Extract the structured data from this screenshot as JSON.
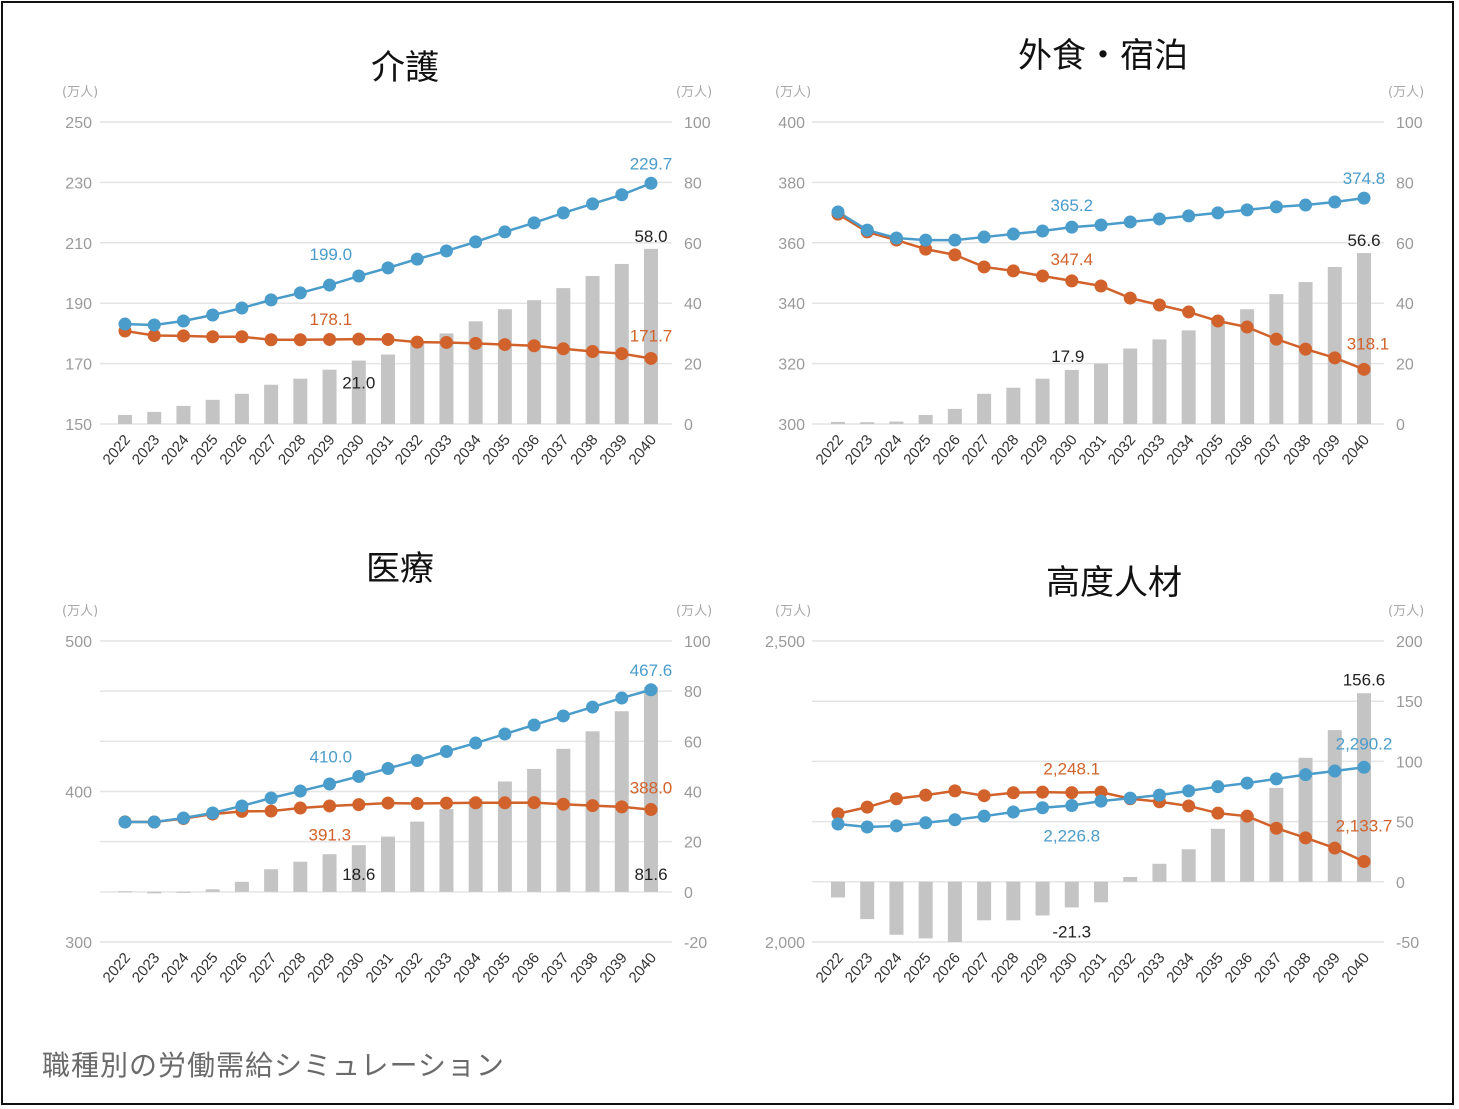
{
  "caption": "職種別の労働需給シミュレーション",
  "colors": {
    "demand": "#4a9ccb",
    "supply": "#d2622b",
    "gap": "#c4c4c4",
    "grid": "#e4e4e4"
  },
  "chart_data": [
    {
      "type": "bar+line",
      "title": "介護",
      "left_unit": "(万人)",
      "right_unit": "(万人)",
      "categories": [
        "2022",
        "2023",
        "2024",
        "2025",
        "2026",
        "2027",
        "2028",
        "2029",
        "2030",
        "2031",
        "2032",
        "2033",
        "2034",
        "2035",
        "2036",
        "2037",
        "2038",
        "2039",
        "2040"
      ],
      "left_ylim": [
        150,
        250
      ],
      "left_ticks": [
        "150",
        "170",
        "190",
        "210",
        "230",
        "250"
      ],
      "left_tick_values": [
        150,
        170,
        190,
        210,
        230,
        250
      ],
      "right_ylim": [
        0,
        100
      ],
      "right_ticks": [
        "0",
        "20",
        "40",
        "60",
        "80",
        "100"
      ],
      "right_tick_values": [
        0,
        20,
        40,
        60,
        80,
        100
      ],
      "series": [
        {
          "name": "demand",
          "axis": "left",
          "kind": "line",
          "values": [
            183.1,
            182.8,
            184.1,
            186.1,
            188.4,
            191.1,
            193.4,
            196.0,
            199.0,
            201.7,
            204.6,
            207.3,
            210.3,
            213.6,
            216.6,
            219.9,
            222.9,
            225.9,
            229.7
          ]
        },
        {
          "name": "supply",
          "axis": "left",
          "kind": "line",
          "values": [
            180.8,
            179.3,
            179.2,
            178.9,
            178.9,
            177.9,
            177.9,
            178.0,
            178.1,
            178.0,
            177.1,
            177.0,
            176.7,
            176.3,
            175.9,
            174.9,
            174.0,
            173.3,
            171.7
          ]
        },
        {
          "name": "gap",
          "axis": "right",
          "kind": "bar",
          "values": [
            3,
            4,
            6,
            8,
            10,
            13,
            15,
            18,
            21.0,
            23,
            27,
            30,
            34,
            38,
            41,
            45,
            49,
            53,
            58.0
          ]
        }
      ],
      "annotations": [
        {
          "series": "demand",
          "category": "2030",
          "text": "199.0"
        },
        {
          "series": "demand",
          "category": "2040",
          "text": "229.7"
        },
        {
          "series": "supply",
          "category": "2030",
          "text": "178.1"
        },
        {
          "series": "supply",
          "category": "2040",
          "text": "171.7"
        },
        {
          "series": "gap",
          "category": "2030",
          "text": "21.0"
        },
        {
          "series": "gap",
          "category": "2040",
          "text": "58.0"
        }
      ]
    },
    {
      "type": "bar+line",
      "title": "外食・宿泊",
      "left_unit": "(万人)",
      "right_unit": "(万人)",
      "categories": [
        "2022",
        "2023",
        "2024",
        "2025",
        "2026",
        "2027",
        "2028",
        "2029",
        "2030",
        "2031",
        "2032",
        "2033",
        "2034",
        "2035",
        "2036",
        "2037",
        "2038",
        "2039",
        "2040"
      ],
      "left_ylim": [
        300,
        400
      ],
      "left_ticks": [
        "300",
        "320",
        "340",
        "360",
        "380",
        "400"
      ],
      "left_tick_values": [
        300,
        320,
        340,
        360,
        380,
        400
      ],
      "right_ylim": [
        0,
        100
      ],
      "right_ticks": [
        "0",
        "20",
        "40",
        "60",
        "80",
        "100"
      ],
      "right_tick_values": [
        0,
        20,
        40,
        60,
        80,
        100
      ],
      "series": [
        {
          "name": "demand",
          "axis": "left",
          "kind": "line",
          "values": [
            370.2,
            364.2,
            361.6,
            360.9,
            360.9,
            361.9,
            362.9,
            363.9,
            365.2,
            365.9,
            366.9,
            367.9,
            368.9,
            369.9,
            370.9,
            371.9,
            372.5,
            373.5,
            374.8
          ]
        },
        {
          "name": "supply",
          "axis": "left",
          "kind": "line",
          "values": [
            369.5,
            363.6,
            360.9,
            357.9,
            356.0,
            352.0,
            350.7,
            349.0,
            347.4,
            345.7,
            341.7,
            339.4,
            337.1,
            334.1,
            332.1,
            328.1,
            324.8,
            321.9,
            318.1
          ]
        },
        {
          "name": "gap",
          "axis": "right",
          "kind": "bar",
          "values": [
            0.7,
            0.6,
            0.8,
            3,
            5,
            10,
            12,
            15,
            17.9,
            20,
            25,
            28,
            31,
            35,
            38,
            43,
            47,
            52,
            56.6
          ]
        }
      ],
      "annotations": [
        {
          "series": "demand",
          "category": "2030",
          "text": "365.2"
        },
        {
          "series": "demand",
          "category": "2040",
          "text": "374.8"
        },
        {
          "series": "supply",
          "category": "2030",
          "text": "347.4"
        },
        {
          "series": "supply",
          "category": "2040",
          "text": "318.1"
        },
        {
          "series": "gap",
          "category": "2030",
          "text": "17.9"
        },
        {
          "series": "gap",
          "category": "2040",
          "text": "56.6"
        }
      ]
    },
    {
      "type": "bar+line",
      "title": "医療",
      "left_unit": "(万人)",
      "right_unit": "(万人)",
      "categories": [
        "2022",
        "2023",
        "2024",
        "2025",
        "2026",
        "2027",
        "2028",
        "2029",
        "2030",
        "2031",
        "2032",
        "2033",
        "2034",
        "2035",
        "2036",
        "2037",
        "2038",
        "2039",
        "2040"
      ],
      "left_ylim": [
        300,
        500
      ],
      "left_ticks": [
        "300",
        "400",
        "500"
      ],
      "left_tick_values": [
        300,
        400,
        500
      ],
      "right_ylim": [
        -20,
        100
      ],
      "right_ticks": [
        "-20",
        "0",
        "20",
        "40",
        "60",
        "80",
        "100"
      ],
      "right_tick_values": [
        -20,
        0,
        20,
        40,
        60,
        80,
        100
      ],
      "series": [
        {
          "name": "demand",
          "axis": "left",
          "kind": "line",
          "values": [
            379.7,
            379.7,
            382.4,
            385.7,
            390.4,
            395.7,
            400.3,
            405.0,
            410.0,
            415.3,
            420.6,
            426.6,
            432.2,
            438.2,
            444.2,
            450.2,
            456.1,
            462.1,
            467.6
          ]
        },
        {
          "name": "supply",
          "axis": "left",
          "kind": "line",
          "values": [
            379.8,
            379.7,
            382.0,
            385.0,
            386.8,
            387.0,
            389.0,
            390.4,
            391.3,
            392.3,
            392.0,
            392.3,
            392.5,
            392.5,
            392.6,
            391.5,
            390.6,
            389.8,
            388.0
          ]
        },
        {
          "name": "gap",
          "axis": "right",
          "kind": "bar",
          "values": [
            0.2,
            -0.6,
            -0.4,
            1,
            4,
            9,
            12,
            15,
            18.6,
            22,
            28,
            33,
            37,
            44,
            49,
            57,
            64,
            72,
            81.6
          ]
        }
      ],
      "annotations": [
        {
          "series": "demand",
          "category": "2030",
          "text": "410.0"
        },
        {
          "series": "demand",
          "category": "2040",
          "text": "467.6"
        },
        {
          "series": "supply",
          "category": "2030",
          "text": "391.3"
        },
        {
          "series": "supply",
          "category": "2040",
          "text": "388.0"
        },
        {
          "series": "gap",
          "category": "2030",
          "text": "18.6"
        },
        {
          "series": "gap",
          "category": "2040",
          "text": "81.6"
        }
      ]
    },
    {
      "type": "bar+line",
      "title": "高度人材",
      "left_unit": "(万人)",
      "right_unit": "(万人)",
      "categories": [
        "2022",
        "2023",
        "2024",
        "2025",
        "2026",
        "2027",
        "2028",
        "2029",
        "2030",
        "2031",
        "2032",
        "2033",
        "2034",
        "2035",
        "2036",
        "2037",
        "2038",
        "2039",
        "2040"
      ],
      "left_ylim": [
        2000,
        2500
      ],
      "left_ticks": [
        "2,000",
        "2,500"
      ],
      "left_tick_values": [
        2000,
        2500
      ],
      "right_ylim": [
        -50,
        200
      ],
      "right_ticks": [
        "-50",
        "0",
        "50",
        "100",
        "150",
        "200"
      ],
      "right_tick_values": [
        -50,
        0,
        50,
        100,
        150,
        200
      ],
      "series": [
        {
          "name": "demand",
          "axis": "left",
          "kind": "line",
          "values": [
            2196,
            2191,
            2193,
            2198,
            2203,
            2209,
            2216,
            2223,
            2226.8,
            2234,
            2239,
            2244,
            2251,
            2258,
            2264,
            2271,
            2278,
            2284,
            2290.2
          ]
        },
        {
          "name": "supply",
          "axis": "left",
          "kind": "line",
          "values": [
            2213,
            2224,
            2238,
            2244,
            2251,
            2243,
            2248,
            2249,
            2248.1,
            2249,
            2238,
            2233,
            2226,
            2214,
            2209,
            2189,
            2173,
            2156,
            2133.7
          ]
        },
        {
          "name": "gap",
          "axis": "right",
          "kind": "bar",
          "values": [
            -13,
            -31,
            -44,
            -47,
            -50,
            -32,
            -32,
            -28,
            -21.3,
            -17,
            4,
            15,
            27,
            44,
            56,
            78,
            103,
            126,
            156.6
          ]
        }
      ],
      "annotations": [
        {
          "series": "supply",
          "category": "2030",
          "text": "2,248.1"
        },
        {
          "series": "demand",
          "category": "2030",
          "text": "2,226.8"
        },
        {
          "series": "demand",
          "category": "2040",
          "text": "2,290.2"
        },
        {
          "series": "supply",
          "category": "2040",
          "text": "2,133.7"
        },
        {
          "series": "gap",
          "category": "2030",
          "text": "-21.3"
        },
        {
          "series": "gap",
          "category": "2040",
          "text": "156.6"
        }
      ]
    }
  ]
}
